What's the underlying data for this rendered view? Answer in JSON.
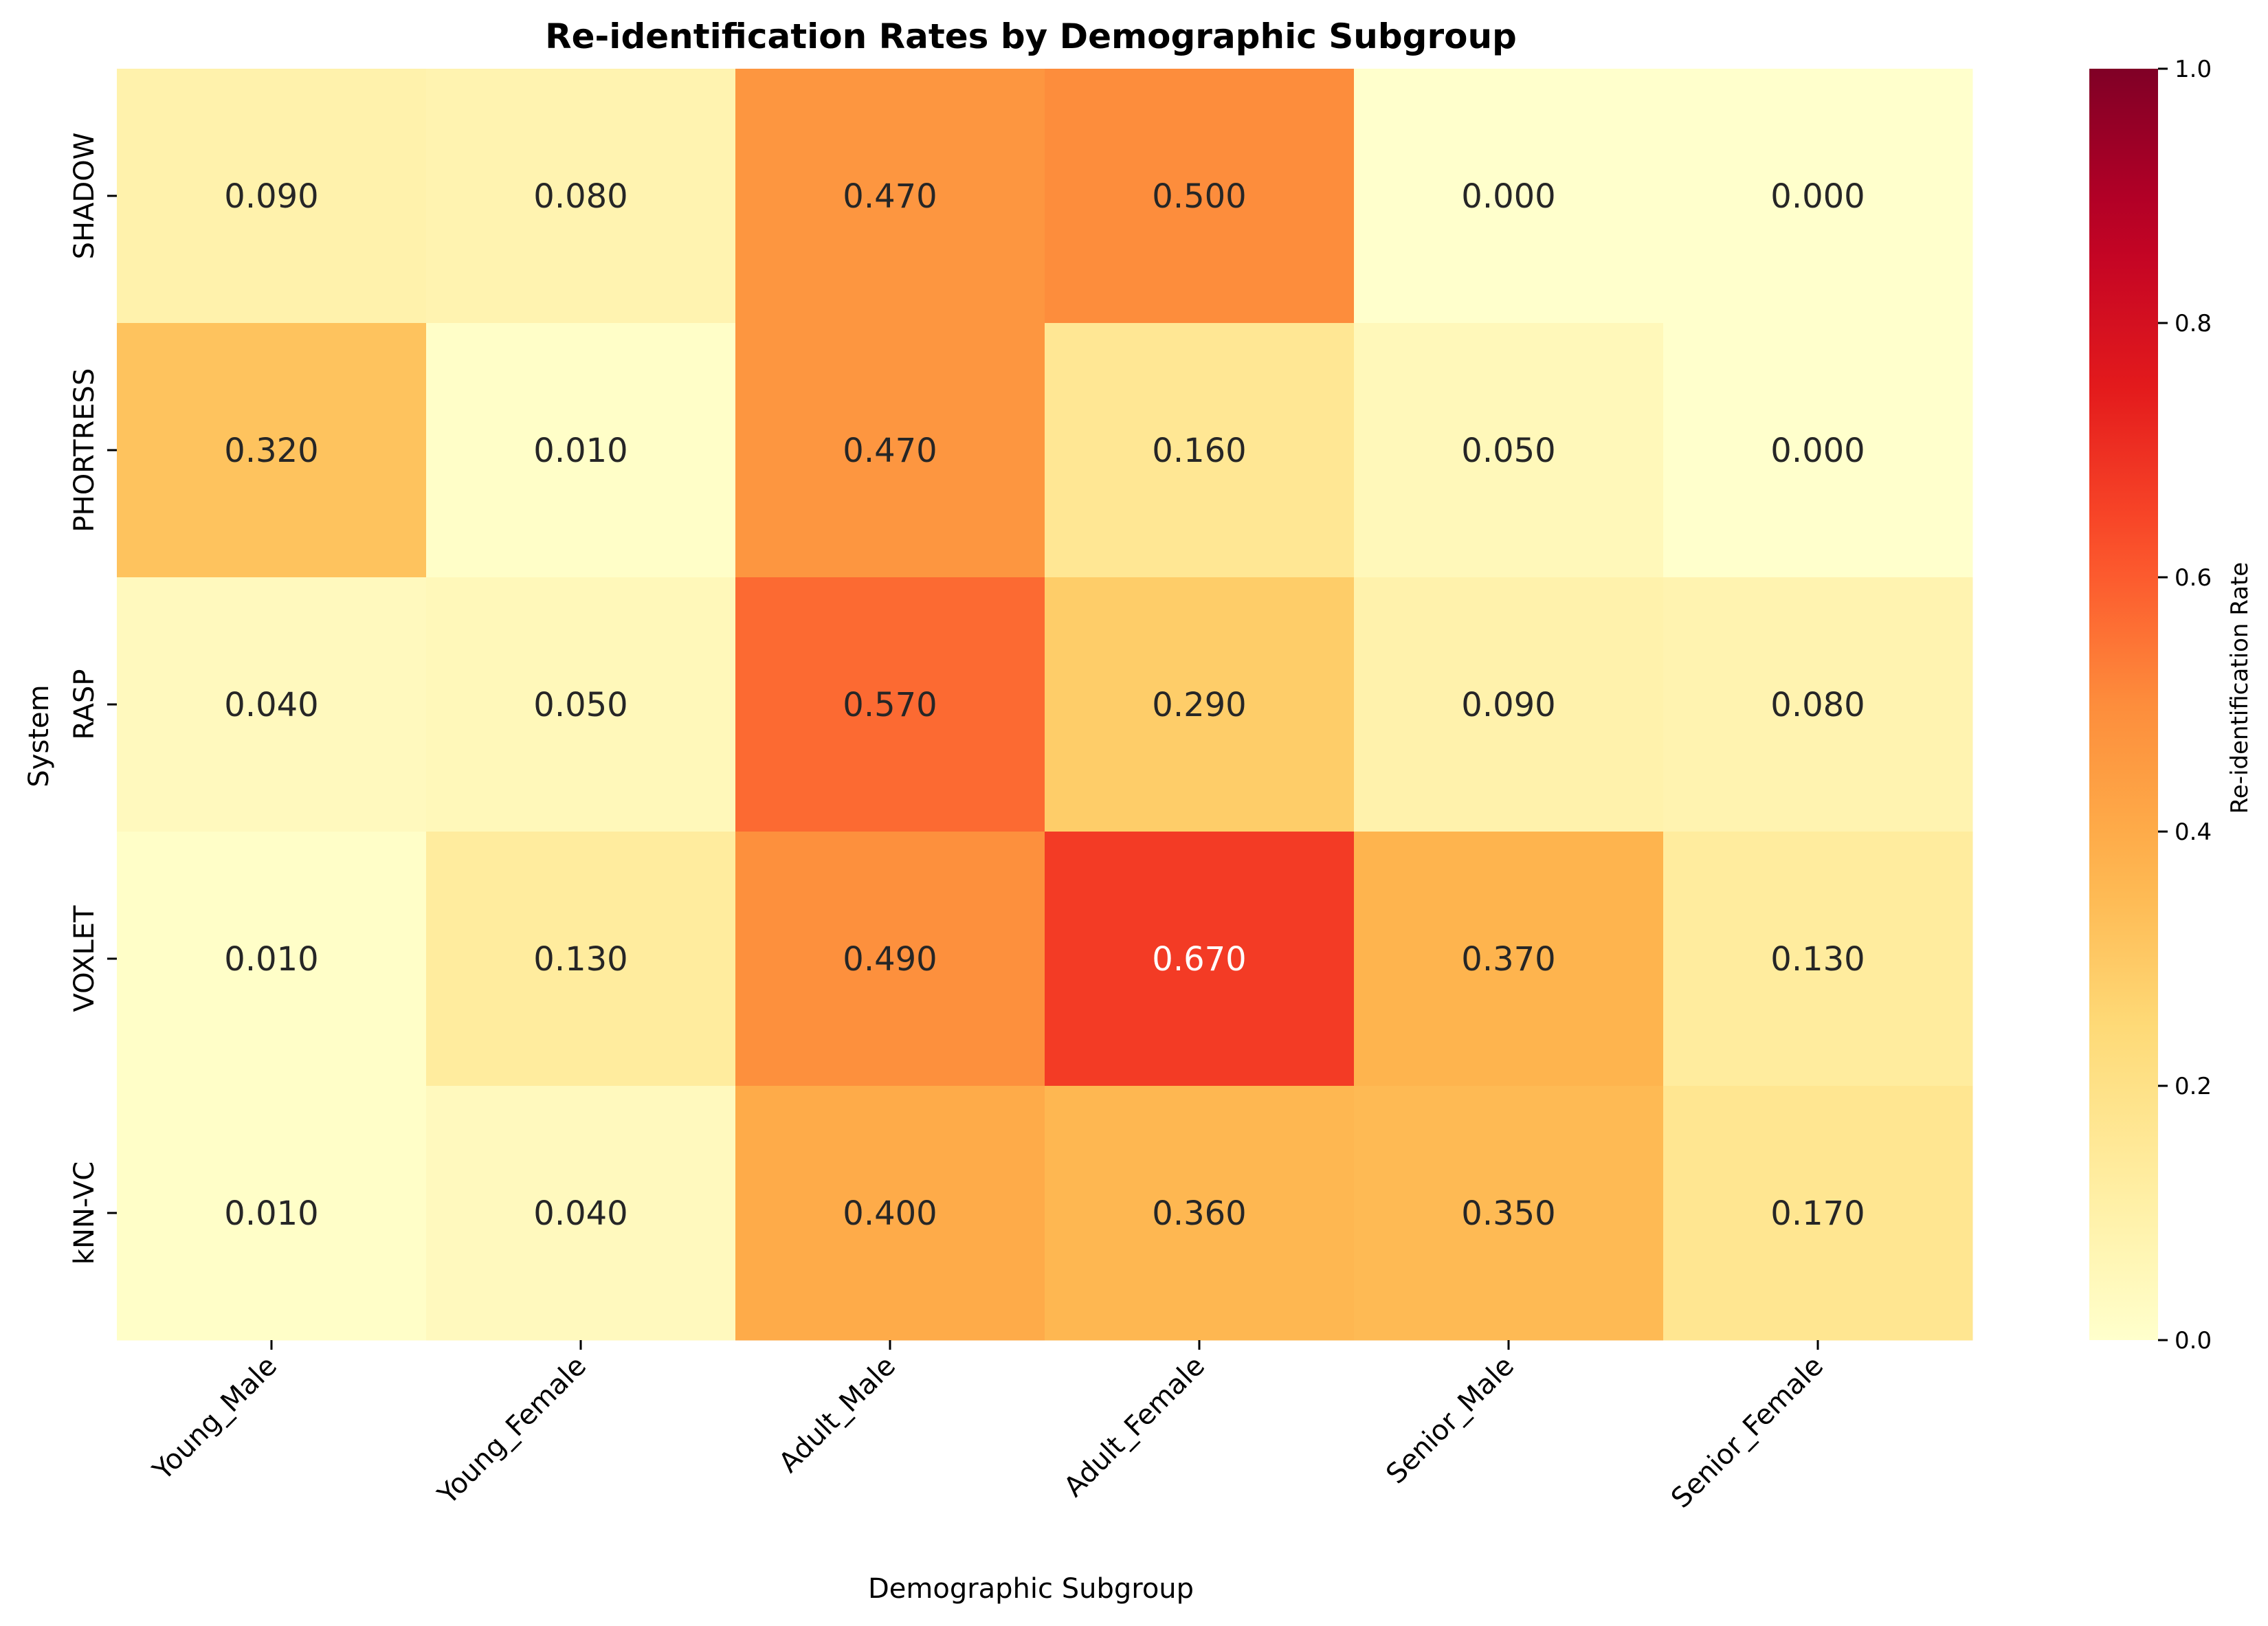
{
  "chart_data": {
    "type": "heatmap",
    "title": "Re-identification Rates by Demographic Subgroup",
    "xlabel": "Demographic Subgroup",
    "ylabel": "System",
    "x_categories": [
      "Young_Male",
      "Young_Female",
      "Adult_Male",
      "Adult_Female",
      "Senior_Male",
      "Senior_Female"
    ],
    "y_categories": [
      "SHADOW",
      "PHORTRESS",
      "RASP",
      "VOXLET",
      "kNN-VC"
    ],
    "values": [
      [
        0.09,
        0.08,
        0.47,
        0.5,
        0.0,
        0.0
      ],
      [
        0.32,
        0.01,
        0.47,
        0.16,
        0.05,
        0.0
      ],
      [
        0.04,
        0.05,
        0.57,
        0.29,
        0.09,
        0.08
      ],
      [
        0.01,
        0.13,
        0.49,
        0.67,
        0.37,
        0.13
      ],
      [
        0.01,
        0.04,
        0.4,
        0.36,
        0.35,
        0.17
      ]
    ],
    "value_format": "0.000",
    "colormap": "YlOrRd",
    "colorbar": {
      "label": "Re-identification Rate",
      "range": [
        0.0,
        1.0
      ],
      "ticks": [
        0.0,
        0.2,
        0.4,
        0.6,
        0.8,
        1.0
      ],
      "tick_labels": [
        "0.0",
        "0.2",
        "0.4",
        "0.6",
        "0.8",
        "1.0"
      ]
    },
    "grid": false
  }
}
